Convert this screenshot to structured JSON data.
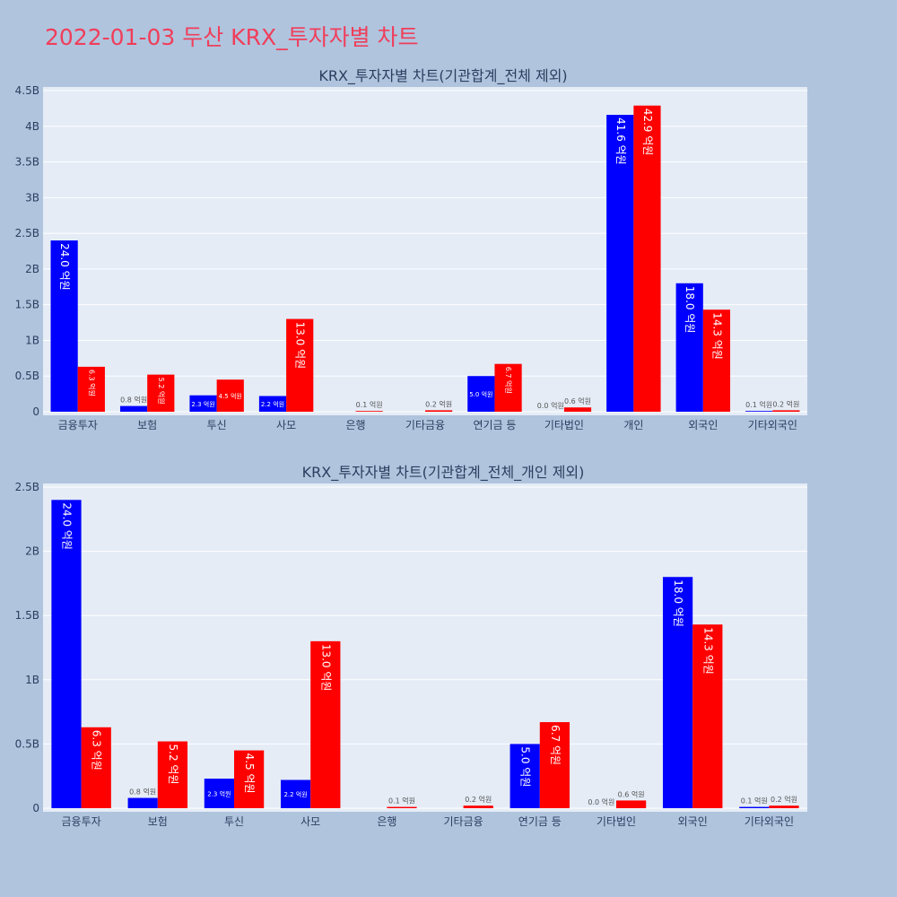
{
  "page": {
    "title": "2022-01-03 두산 KRX_투자자별 차트"
  },
  "colors": {
    "background": "#b0c4de",
    "plot_bg": "#e5ecf6",
    "grid": "#ffffff",
    "title": "#f03e5a",
    "text": "#2a3f5f",
    "bar_a": "#0000ff",
    "bar_b": "#ff0000"
  },
  "chart_data": [
    {
      "type": "bar",
      "title": "KRX_투자자별 차트(기관합계_전체 제외)",
      "categories": [
        "금융투자",
        "보험",
        "투신",
        "사모",
        "은행",
        "기타금융",
        "연기금 등",
        "기타법인",
        "개인",
        "외국인",
        "기타외국인"
      ],
      "series": [
        {
          "color": "#0000ff",
          "values": [
            2.4,
            0.08,
            0.23,
            0.22,
            0,
            0,
            0.5,
            0.0,
            4.16,
            1.8,
            0.01
          ],
          "labels": [
            "24.0 억원",
            "0.8 억원",
            "2.3 억원",
            "2.2 억원",
            "",
            "",
            "5.0 억원",
            "0.0 억원",
            "41.6 억원",
            "18.0 억원",
            "0.1 억원"
          ]
        },
        {
          "color": "#ff0000",
          "values": [
            0.63,
            0.52,
            0.45,
            1.3,
            0.01,
            0.02,
            0.67,
            0.06,
            4.29,
            1.43,
            0.02
          ],
          "labels": [
            "6.3 억원",
            "5.2 억원",
            "4.5 억원",
            "13.0 억원",
            "0.1 억원",
            "0.2 억원",
            "6.7 억원",
            "0.6 억원",
            "42.9 억원",
            "14.3 억원",
            "0.2 억원"
          ]
        }
      ],
      "ylim": [
        0,
        4.5
      ],
      "yticks": [
        0,
        0.5,
        1,
        1.5,
        2,
        2.5,
        3,
        3.5,
        4,
        4.5
      ],
      "ytick_labels": [
        "0",
        "0.5B",
        "1B",
        "1.5B",
        "2B",
        "2.5B",
        "3B",
        "3.5B",
        "4B",
        "4.5B"
      ],
      "grid": true
    },
    {
      "type": "bar",
      "title": "KRX_투자자별 차트(기관합계_전체_개인 제외)",
      "categories": [
        "금융투자",
        "보험",
        "투신",
        "사모",
        "은행",
        "기타금융",
        "연기금 등",
        "기타법인",
        "외국인",
        "기타외국인"
      ],
      "series": [
        {
          "color": "#0000ff",
          "values": [
            2.4,
            0.08,
            0.23,
            0.22,
            0,
            0,
            0.5,
            0.0,
            1.8,
            0.01
          ],
          "labels": [
            "24.0 억원",
            "0.8 억원",
            "2.3 억원",
            "2.2 억원",
            "",
            "",
            "5.0 억원",
            "0.0 억원",
            "18.0 억원",
            "0.1 억원"
          ]
        },
        {
          "color": "#ff0000",
          "values": [
            0.63,
            0.52,
            0.45,
            1.3,
            0.01,
            0.02,
            0.67,
            0.06,
            1.43,
            0.02
          ],
          "labels": [
            "6.3 억원",
            "5.2 억원",
            "4.5 억원",
            "13.0 억원",
            "0.1 억원",
            "0.2 억원",
            "6.7 억원",
            "0.6 억원",
            "14.3 억원",
            "0.2 억원"
          ]
        }
      ],
      "ylim": [
        0,
        2.5
      ],
      "yticks": [
        0,
        0.5,
        1,
        1.5,
        2,
        2.5
      ],
      "ytick_labels": [
        "0",
        "0.5B",
        "1B",
        "1.5B",
        "2B",
        "2.5B"
      ],
      "grid": true
    }
  ]
}
